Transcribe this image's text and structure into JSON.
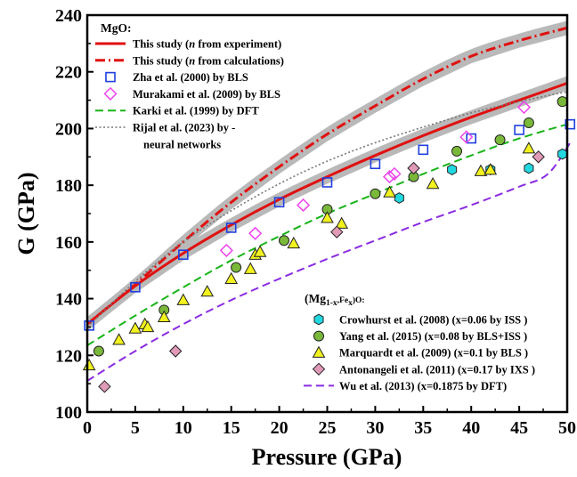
{
  "chart_data": {
    "type": "scatter",
    "xlabel": "Pressure (GPa)",
    "ylabel": "G (GPa)",
    "xlim": [
      0,
      50
    ],
    "ylim": [
      100,
      240
    ],
    "xticks": [
      0,
      5,
      10,
      15,
      20,
      25,
      30,
      35,
      40,
      45,
      50
    ],
    "yticks": [
      100,
      120,
      140,
      160,
      180,
      200,
      220,
      240
    ],
    "grid": false,
    "legend_groups": [
      {
        "title": "MgO:",
        "placement": "top-left"
      },
      {
        "title": "(Mg1-x,Fex)O:",
        "placement": "bottom-right"
      }
    ],
    "series": [
      {
        "name": "This study (n from experiment)",
        "group": 0,
        "kind": "line",
        "style": "solid",
        "color": "#e01010",
        "band": 2.5,
        "x": [
          0,
          5,
          10,
          15,
          20,
          25,
          30,
          35,
          40,
          45,
          50
        ],
        "y": [
          131,
          144.5,
          156,
          166,
          175,
          183,
          190.5,
          197.5,
          204,
          210,
          216
        ]
      },
      {
        "name": "This study (n from calculations)",
        "group": 0,
        "kind": "line",
        "style": "dashdot",
        "color": "#e01010",
        "band": 2.5,
        "x": [
          0,
          5,
          10,
          15,
          20,
          25,
          30,
          35,
          40,
          45,
          50
        ],
        "y": [
          131,
          145,
          160,
          174,
          186.5,
          198,
          208,
          217.5,
          225.5,
          231,
          235.5
        ]
      },
      {
        "name": "Zha et al. (2000) by BLS",
        "group": 0,
        "kind": "marker",
        "marker": "square",
        "color": "#1f3fe0",
        "x": [
          0.2,
          5,
          10,
          15,
          20,
          25,
          30,
          35,
          40,
          45,
          50.3
        ],
        "y": [
          130.5,
          144,
          155.5,
          165,
          174,
          181,
          187.5,
          192.5,
          196.5,
          199.5,
          201.5
        ]
      },
      {
        "name": "Murakami et al. (2009) by BLS",
        "group": 0,
        "kind": "marker",
        "marker": "diamond",
        "color": "#ee44ee",
        "x": [
          14.5,
          17.5,
          22.5,
          31.5,
          32,
          39.5,
          45.5
        ],
        "y": [
          157,
          163,
          173,
          183,
          184,
          197,
          207.5
        ]
      },
      {
        "name": "Karki et al. (1999) by DFT",
        "group": 0,
        "kind": "line",
        "style": "dashed",
        "color": "#18b418",
        "x": [
          0,
          5,
          10,
          15,
          20,
          25,
          30,
          35,
          40,
          45,
          50.5
        ],
        "y": [
          123.5,
          134,
          144,
          153.5,
          162,
          170,
          177,
          184,
          190.5,
          196.5,
          202
        ]
      },
      {
        "name": "Rijal et al. (2023) by - neural networks",
        "group": 0,
        "kind": "line",
        "style": "dotted",
        "color": "#777777",
        "x": [
          0,
          5,
          10,
          15,
          20,
          25,
          30,
          35,
          40,
          45,
          50
        ],
        "y": [
          130,
          146,
          160,
          171,
          180.5,
          188.5,
          195,
          200.5,
          205.5,
          209.5,
          213
        ]
      },
      {
        "name": "Crowhurst et al. (2008) (x=0.06 by ISS )",
        "group": 1,
        "kind": "marker",
        "marker": "hexagon",
        "color": "#22d8e0",
        "x": [
          32.5,
          38,
          42,
          46,
          49.5
        ],
        "y": [
          175.5,
          185.5,
          185.5,
          186,
          191
        ]
      },
      {
        "name": "Yang et al. (2015) (x=0.08 by BLS+ISS )",
        "group": 1,
        "kind": "marker",
        "marker": "circle",
        "color": "#7ab83a",
        "x": [
          1.2,
          8,
          15.5,
          20.5,
          25,
          30,
          34,
          38.5,
          43,
          46,
          49.5
        ],
        "y": [
          121.5,
          136,
          151,
          160.5,
          171.5,
          177,
          183,
          192,
          196,
          202,
          209.5
        ]
      },
      {
        "name": "Marquardt et al. (2009) (x=0.1 by BLS )",
        "group": 1,
        "kind": "marker",
        "marker": "triangle",
        "color": "#f2f21e",
        "x": [
          0.2,
          3.3,
          5,
          6,
          6.3,
          8,
          10,
          12.5,
          15,
          17,
          17.5,
          18,
          21.5,
          25,
          26.5,
          31.5,
          36,
          41,
          42,
          46
        ],
        "y": [
          116.5,
          125.5,
          129.5,
          131,
          130,
          133.5,
          139.5,
          142.5,
          147,
          150.5,
          155.5,
          156.5,
          159.5,
          168.5,
          166.5,
          177.5,
          180.5,
          185,
          185.5,
          193
        ]
      },
      {
        "name": "Antonangeli et al. (2011) (x=0.17 by IXS )",
        "group": 1,
        "kind": "marker",
        "marker": "diamond",
        "color": "#e09ab8",
        "x": [
          1.8,
          9.2,
          26,
          34,
          47
        ],
        "y": [
          109,
          121.5,
          163.5,
          186,
          190
        ]
      },
      {
        "name": "Wu et al. (2013) (x=0.1875 by DFT)",
        "group": 1,
        "kind": "line",
        "style": "dashed",
        "color": "#8a2be2",
        "x": [
          0,
          5,
          10,
          15,
          20,
          25,
          30,
          35,
          40,
          45,
          48,
          50.5
        ],
        "y": [
          111,
          121.5,
          131,
          139.5,
          147,
          154,
          160.5,
          167,
          173,
          179.5,
          184,
          196
        ]
      }
    ]
  }
}
